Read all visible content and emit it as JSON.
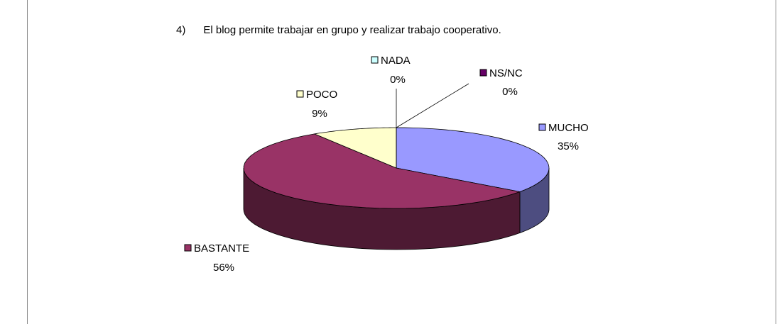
{
  "chart_data": {
    "type": "pie",
    "title": "4)      El blog permite trabajar en grupo y realizar trabajo cooperativo.",
    "categories": [
      "MUCHO",
      "BASTANTE",
      "POCO",
      "NADA",
      "NS/NC"
    ],
    "values": [
      35,
      56,
      9,
      0,
      0
    ],
    "value_labels": [
      "35%",
      "56%",
      "9%",
      "0%",
      "0%"
    ],
    "colors": [
      "#9999ff",
      "#993366",
      "#ffffcc",
      "#ccffff",
      "#660066"
    ],
    "three_d": true
  }
}
